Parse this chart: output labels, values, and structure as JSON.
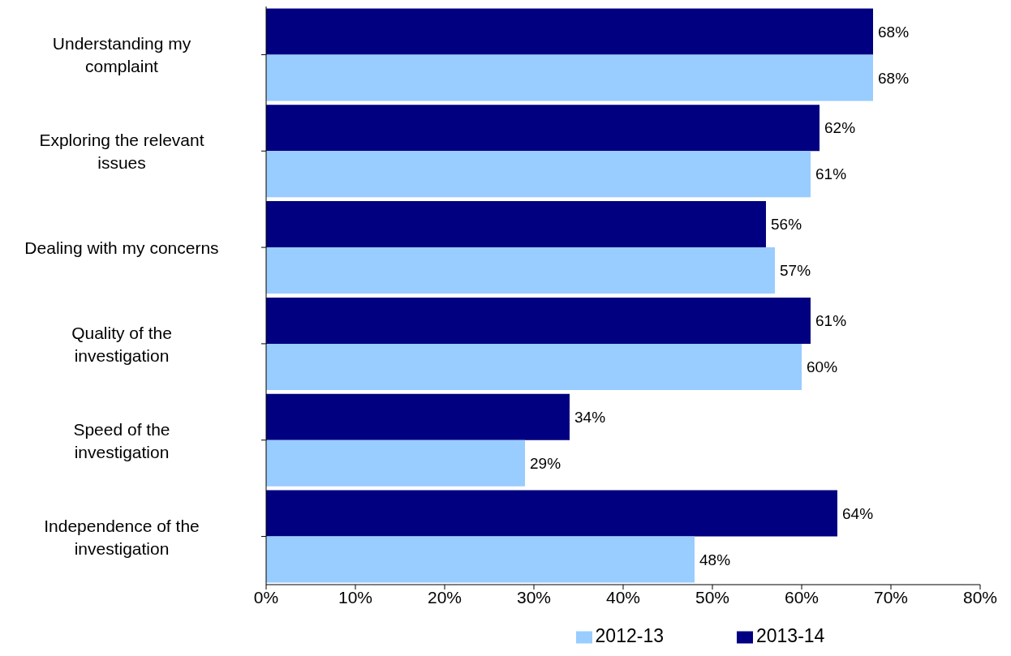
{
  "chart_data": {
    "type": "bar",
    "orientation": "horizontal",
    "categories": [
      "Understanding my complaint",
      "Exploring the relevant issues",
      "Dealing with my concerns ",
      "Quality of the investigation",
      "Speed of the investigation",
      "Independence of the investigation"
    ],
    "series": [
      {
        "name": "2012-13",
        "color": "#99ccff",
        "values": [
          68,
          61,
          57,
          60,
          29,
          48
        ],
        "value_labels": [
          "68%",
          "61%",
          "57%",
          "60%",
          "29%",
          "48%"
        ]
      },
      {
        "name": "2013-14",
        "color": "#000080",
        "values": [
          68,
          62,
          56,
          61,
          34,
          64
        ],
        "value_labels": [
          "68%",
          "62%",
          "56%",
          "61%",
          "34%",
          "64%"
        ]
      }
    ],
    "xlim": [
      0,
      80
    ],
    "xticks": [
      {
        "value": 0,
        "label": "0%"
      },
      {
        "value": 10,
        "label": "10%"
      },
      {
        "value": 20,
        "label": "20%"
      },
      {
        "value": 30,
        "label": "30%"
      },
      {
        "value": 40,
        "label": "40%"
      },
      {
        "value": 50,
        "label": "50%"
      },
      {
        "value": 60,
        "label": "60%"
      },
      {
        "value": 70,
        "label": "70%"
      },
      {
        "value": 80,
        "label": "80%"
      }
    ],
    "grid": false,
    "legend": "bottom"
  }
}
